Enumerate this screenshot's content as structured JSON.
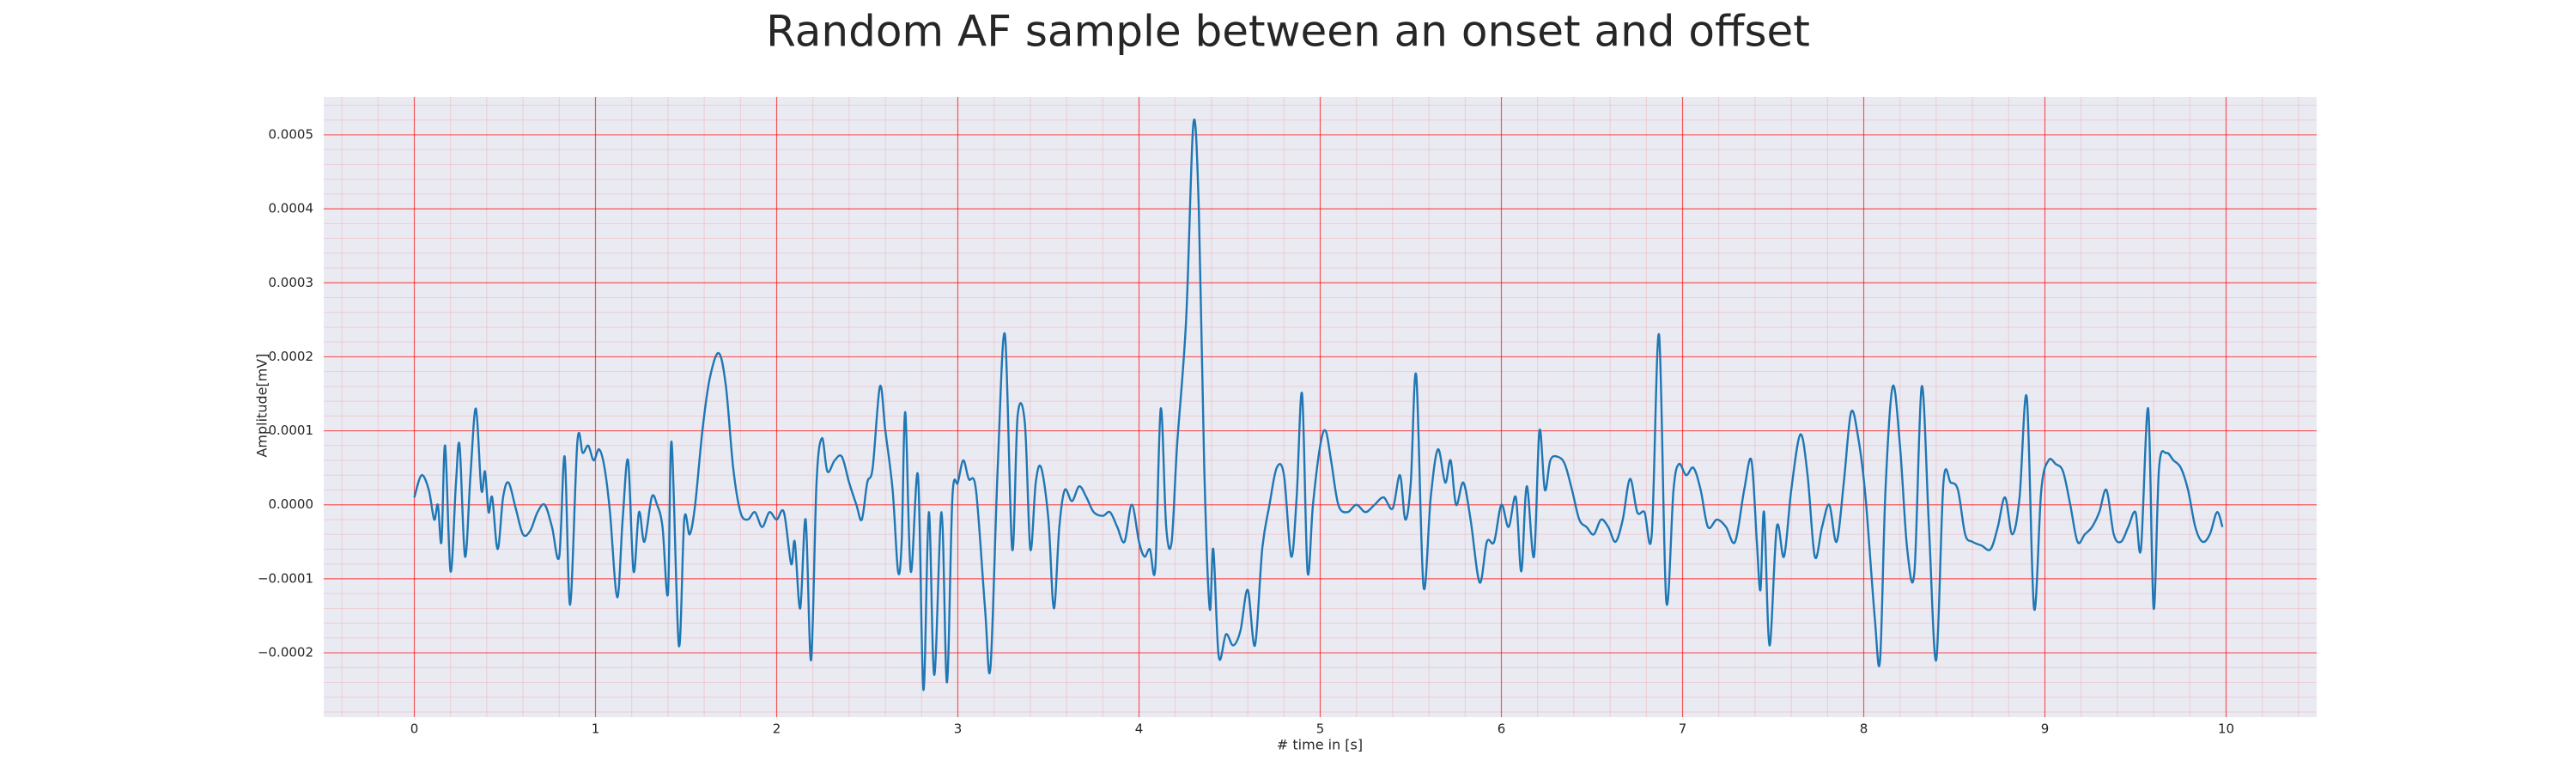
{
  "chart_data": {
    "type": "line",
    "title": "Random AF sample between an onset and offset",
    "x_label": "# time in [s]",
    "y_label": "Amplitude[mV]",
    "xlim": [
      -0.5,
      10.5
    ],
    "ylim": [
      -0.000287,
      0.000551
    ],
    "xticks": [
      0,
      1,
      2,
      3,
      4,
      5,
      6,
      7,
      8,
      9,
      10
    ],
    "yticks": [
      {
        "value": -0.0002,
        "label": "−0.0002"
      },
      {
        "value": -0.0001,
        "label": "−0.0001"
      },
      {
        "value": 0,
        "label": "0.0000"
      },
      0.0001,
      0.0002,
      0.0003,
      0.0004,
      0.0005
    ],
    "grid": true,
    "minor_grid": true,
    "background": "#eaeaf2",
    "grid_color": "#ff0000",
    "series": [
      {
        "color": "#1f77b4",
        "x": [
          0.0,
          0.04,
          0.08,
          0.11,
          0.13,
          0.15,
          0.17,
          0.2,
          0.23,
          0.25,
          0.28,
          0.31,
          0.34,
          0.37,
          0.39,
          0.41,
          0.43,
          0.46,
          0.49,
          0.52,
          0.56,
          0.6,
          0.64,
          0.68,
          0.72,
          0.76,
          0.8,
          0.83,
          0.86,
          0.9,
          0.93,
          0.96,
          0.99,
          1.02,
          1.05,
          1.08,
          1.12,
          1.15,
          1.18,
          1.21,
          1.24,
          1.27,
          1.31,
          1.34,
          1.37,
          1.4,
          1.42,
          1.46,
          1.49,
          1.52,
          1.55,
          1.59,
          1.63,
          1.68,
          1.72,
          1.76,
          1.8,
          1.84,
          1.88,
          1.92,
          1.96,
          2.0,
          2.04,
          2.08,
          2.1,
          2.13,
          2.16,
          2.19,
          2.22,
          2.25,
          2.28,
          2.32,
          2.36,
          2.4,
          2.44,
          2.47,
          2.5,
          2.53,
          2.57,
          2.6,
          2.64,
          2.67,
          2.69,
          2.71,
          2.74,
          2.78,
          2.81,
          2.84,
          2.87,
          2.91,
          2.94,
          2.97,
          3.0,
          3.03,
          3.06,
          3.1,
          3.15,
          3.18,
          3.22,
          3.26,
          3.3,
          3.33,
          3.37,
          3.4,
          3.43,
          3.46,
          3.5,
          3.53,
          3.56,
          3.59,
          3.63,
          3.67,
          3.71,
          3.75,
          3.8,
          3.84,
          3.88,
          3.92,
          3.96,
          4.0,
          4.03,
          4.06,
          4.09,
          4.12,
          4.15,
          4.18,
          4.21,
          4.26,
          4.3,
          4.33,
          4.36,
          4.39,
          4.41,
          4.44,
          4.48,
          4.52,
          4.56,
          4.6,
          4.64,
          4.68,
          4.72,
          4.76,
          4.8,
          4.84,
          4.87,
          4.9,
          4.93,
          4.96,
          5.0,
          5.03,
          5.06,
          5.1,
          5.15,
          5.2,
          5.25,
          5.3,
          5.35,
          5.4,
          5.44,
          5.47,
          5.5,
          5.53,
          5.57,
          5.61,
          5.65,
          5.69,
          5.72,
          5.75,
          5.79,
          5.83,
          5.88,
          5.92,
          5.96,
          6.0,
          6.04,
          6.08,
          6.11,
          6.14,
          6.18,
          6.21,
          6.24,
          6.27,
          6.31,
          6.35,
          6.39,
          6.43,
          6.47,
          6.51,
          6.55,
          6.59,
          6.63,
          6.67,
          6.71,
          6.75,
          6.79,
          6.83,
          6.87,
          6.91,
          6.95,
          6.98,
          7.02,
          7.06,
          7.1,
          7.14,
          7.19,
          7.24,
          7.29,
          7.34,
          7.38,
          7.41,
          7.43,
          7.45,
          7.48,
          7.52,
          7.56,
          7.6,
          7.65,
          7.69,
          7.73,
          7.77,
          7.81,
          7.85,
          7.89,
          7.93,
          7.97,
          8.01,
          8.06,
          8.09,
          8.12,
          8.16,
          8.2,
          8.24,
          8.28,
          8.32,
          8.36,
          8.4,
          8.44,
          8.48,
          8.52,
          8.56,
          8.6,
          8.65,
          8.7,
          8.74,
          8.78,
          8.82,
          8.86,
          8.9,
          8.94,
          8.98,
          9.02,
          9.06,
          9.1,
          9.14,
          9.18,
          9.22,
          9.26,
          9.3,
          9.34,
          9.38,
          9.42,
          9.46,
          9.5,
          9.53,
          9.57,
          9.6,
          9.63,
          9.67,
          9.71,
          9.75,
          9.79,
          9.83,
          9.87,
          9.91,
          9.95,
          9.98
        ],
        "values": [
          1e-05,
          4e-05,
          2e-05,
          -2e-05,
          0,
          -5e-05,
          8e-05,
          -9e-05,
          3e-05,
          8e-05,
          -7e-05,
          4e-05,
          0.00013,
          2e-05,
          4.5e-05,
          -1e-05,
          1e-05,
          -6e-05,
          1e-05,
          3e-05,
          -5e-06,
          -4e-05,
          -3.5e-05,
          -1e-05,
          0,
          -3e-05,
          -7e-05,
          6.5e-05,
          -0.000135,
          8.5e-05,
          7e-05,
          8e-05,
          6e-05,
          7.5e-05,
          5e-05,
          -1e-05,
          -0.000125,
          -2e-05,
          6e-05,
          -9e-05,
          -1e-05,
          -5e-05,
          1e-05,
          0,
          -3e-05,
          -0.00012,
          8.5e-05,
          -0.00019,
          -2e-05,
          -4e-05,
          0,
          0.0001,
          0.00017,
          0.000205,
          0.00016,
          5e-05,
          -1e-05,
          -2e-05,
          -1e-05,
          -3e-05,
          -1e-05,
          -2e-05,
          -1e-05,
          -8e-05,
          -5e-05,
          -0.00014,
          -2e-05,
          -0.00021,
          3e-05,
          9e-05,
          4.5e-05,
          6e-05,
          6.5e-05,
          3e-05,
          0,
          -2e-05,
          3e-05,
          5e-05,
          0.00016,
          0.0001,
          2e-05,
          -9e-05,
          -5e-05,
          0.000125,
          -9e-05,
          4e-05,
          -0.00025,
          -1e-05,
          -0.00023,
          -1e-05,
          -0.00024,
          1e-05,
          3e-05,
          6e-05,
          3.5e-05,
          2e-05,
          -0.00014,
          -0.00022,
          5e-05,
          0.00023,
          -6e-05,
          0.00012,
          0.00011,
          -6e-05,
          3e-05,
          5e-05,
          -2e-05,
          -0.00014,
          -3e-05,
          2e-05,
          5e-06,
          2.5e-05,
          1e-05,
          -1e-05,
          -1.5e-05,
          -1e-05,
          -3e-05,
          -5e-05,
          0,
          -5e-05,
          -7e-05,
          -6e-05,
          -8.5e-05,
          0.00013,
          -3e-05,
          -5e-05,
          8e-05,
          0.00025,
          0.000515,
          0.0004,
          5e-05,
          -0.00014,
          -6e-05,
          -0.000205,
          -0.000175,
          -0.00019,
          -0.00017,
          -0.000115,
          -0.00019,
          -6e-05,
          0,
          5e-05,
          4e-05,
          -7e-05,
          1e-05,
          0.00015,
          -9e-05,
          0,
          8e-05,
          0.0001,
          6e-05,
          0,
          -1e-05,
          0,
          -1e-05,
          0,
          1e-05,
          -5e-06,
          4e-05,
          -2e-05,
          3e-05,
          0.000175,
          -0.00011,
          1e-05,
          7.5e-05,
          3e-05,
          6e-05,
          0,
          3e-05,
          -2e-05,
          -0.000105,
          -5e-05,
          -5e-05,
          0,
          -3e-05,
          1e-05,
          -9e-05,
          2.5e-05,
          -7e-05,
          0.0001,
          2e-05,
          6e-05,
          6.5e-05,
          5.5e-05,
          2e-05,
          -2e-05,
          -3e-05,
          -4e-05,
          -2e-05,
          -3e-05,
          -5e-05,
          -2e-05,
          3.5e-05,
          -1e-05,
          -1e-05,
          -4e-05,
          0.00023,
          -0.00013,
          2e-05,
          5.5e-05,
          4e-05,
          5e-05,
          2e-05,
          -3e-05,
          -2e-05,
          -3e-05,
          -5e-05,
          2e-05,
          6e-05,
          -5e-05,
          -0.000115,
          -1e-05,
          -0.00019,
          -3e-05,
          -7e-05,
          2e-05,
          9.5e-05,
          4e-05,
          -7e-05,
          -3e-05,
          0,
          -5e-05,
          3e-05,
          0.000125,
          9e-05,
          1e-05,
          -0.00015,
          -0.00021,
          2e-05,
          0.00016,
          8e-05,
          -6e-05,
          -9e-05,
          0.00016,
          -3e-05,
          -0.00021,
          3e-05,
          3e-05,
          2e-05,
          -4e-05,
          -5e-05,
          -5.5e-05,
          -6e-05,
          -3e-05,
          1e-05,
          -4e-05,
          1e-05,
          0.000145,
          -0.00014,
          2e-05,
          6e-05,
          5.5e-05,
          4.5e-05,
          0,
          -5e-05,
          -4e-05,
          -3e-05,
          -1e-05,
          2e-05,
          -4e-05,
          -5e-05,
          -3e-05,
          -1e-05,
          -6e-05,
          0.00013,
          -0.00014,
          5e-05,
          7e-05,
          6e-05,
          5e-05,
          2e-05,
          -3e-05,
          -5e-05,
          -4e-05,
          -1e-05,
          -3e-05
        ]
      }
    ]
  }
}
